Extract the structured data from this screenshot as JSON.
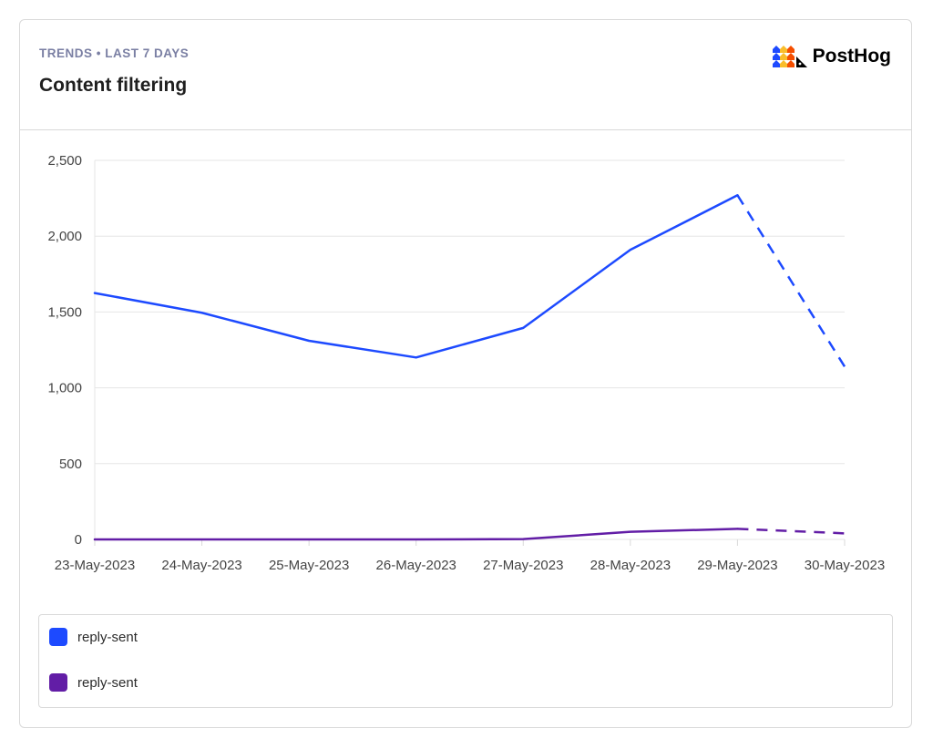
{
  "header": {
    "subtitle": "TRENDS • LAST 7 DAYS",
    "title": "Content filtering",
    "brand": "PostHog",
    "brand_icon": "posthog-logo-icon"
  },
  "legend": {
    "items": [
      {
        "label": "reply-sent",
        "color": "#1d4aff"
      },
      {
        "label": "reply-sent",
        "color": "#621da6"
      }
    ]
  },
  "chart_data": {
    "type": "line",
    "categories": [
      "23-May-2023",
      "24-May-2023",
      "25-May-2023",
      "26-May-2023",
      "27-May-2023",
      "28-May-2023",
      "29-May-2023",
      "30-May-2023"
    ],
    "series": [
      {
        "name": "reply-sent",
        "color": "#1d4aff",
        "values": [
          1625,
          1495,
          1310,
          1200,
          1395,
          1910,
          2270,
          1140
        ],
        "dashed_from_index": 6
      },
      {
        "name": "reply-sent",
        "color": "#621da6",
        "values": [
          0,
          0,
          0,
          0,
          2,
          50,
          70,
          40
        ],
        "dashed_from_index": 6
      }
    ],
    "ylim": [
      0,
      2500
    ],
    "yticks": [
      0,
      500,
      1000,
      1500,
      2000,
      2500
    ],
    "ytick_labels": [
      "0",
      "500",
      "1,000",
      "1,500",
      "2,000",
      "2,500"
    ],
    "grid": true,
    "legend_position": "bottom"
  }
}
